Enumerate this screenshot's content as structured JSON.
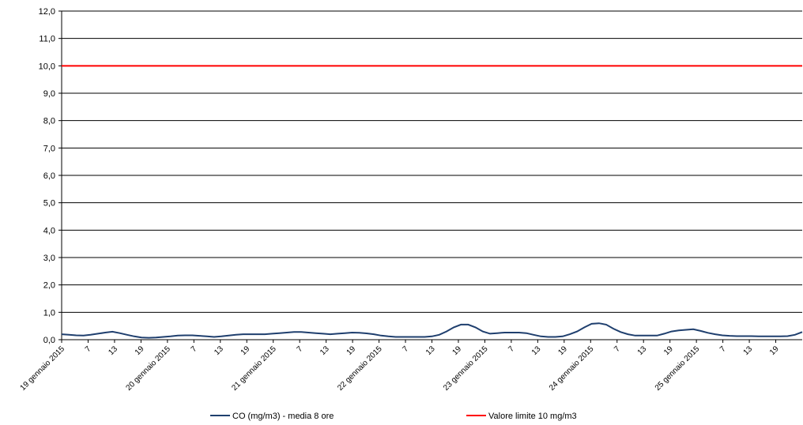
{
  "chart_data": {
    "type": "line",
    "title": "",
    "xlabel": "",
    "ylabel": "",
    "ylim": [
      0,
      12
    ],
    "y_ticks": [
      "0,0",
      "1,0",
      "2,0",
      "3,0",
      "4,0",
      "5,0",
      "6,0",
      "7,0",
      "8,0",
      "9,0",
      "10,0",
      "11,0",
      "12,0"
    ],
    "x_hours_per_step": 3,
    "x_tick_labels": [
      "19 gennaio 2015",
      "7",
      "13",
      "19",
      "20 gennaio 2015",
      "7",
      "13",
      "19",
      "21 gennaio 2015",
      "7",
      "13",
      "19",
      "22 gennaio 2015",
      "7",
      "13",
      "19",
      "23 gennaio 2015",
      "7",
      "13",
      "19",
      "24 gennaio 2015",
      "7",
      "13",
      "19",
      "25 gennaio 2015",
      "7",
      "13",
      "19"
    ],
    "grid": true,
    "legend_position": "bottom",
    "series": [
      {
        "name": "CO (mg/m3) - media 8 ore",
        "color": "#1f3f6e",
        "values": [
          0.2,
          0.18,
          0.16,
          0.15,
          0.18,
          0.22,
          0.26,
          0.29,
          0.24,
          0.18,
          0.12,
          0.08,
          0.07,
          0.08,
          0.1,
          0.12,
          0.15,
          0.16,
          0.16,
          0.14,
          0.12,
          0.1,
          0.12,
          0.15,
          0.18,
          0.2,
          0.2,
          0.2,
          0.2,
          0.22,
          0.24,
          0.26,
          0.28,
          0.28,
          0.26,
          0.24,
          0.22,
          0.2,
          0.22,
          0.24,
          0.26,
          0.25,
          0.23,
          0.2,
          0.15,
          0.12,
          0.1,
          0.1,
          0.1,
          0.1,
          0.1,
          0.12,
          0.18,
          0.3,
          0.45,
          0.55,
          0.55,
          0.45,
          0.3,
          0.22,
          0.24,
          0.26,
          0.26,
          0.26,
          0.24,
          0.18,
          0.12,
          0.1,
          0.1,
          0.12,
          0.2,
          0.3,
          0.45,
          0.58,
          0.6,
          0.55,
          0.4,
          0.28,
          0.2,
          0.15,
          0.15,
          0.15,
          0.15,
          0.22,
          0.3,
          0.34,
          0.36,
          0.38,
          0.32,
          0.25,
          0.2,
          0.16,
          0.14,
          0.13,
          0.13,
          0.13,
          0.12,
          0.12,
          0.12,
          0.12,
          0.13,
          0.18,
          0.28
        ]
      },
      {
        "name": "Valore limite 10 mg/m3",
        "color": "#ff0000",
        "values_constant": 10
      }
    ]
  }
}
